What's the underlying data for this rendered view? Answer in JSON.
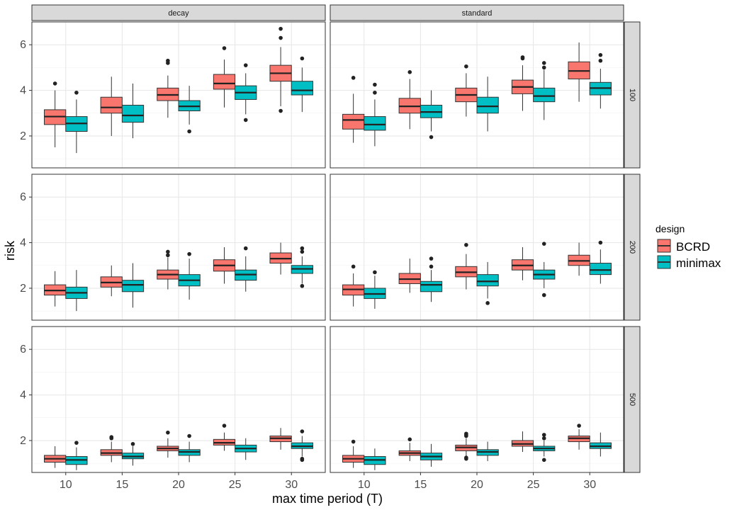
{
  "chart_data": {
    "type": "boxplot",
    "xlabel": "max time period (T)",
    "ylabel": "risk",
    "categories": [
      "10",
      "15",
      "20",
      "25",
      "30"
    ],
    "ylim": [
      0.6,
      7.0
    ],
    "y_ticks": [
      2,
      4,
      6
    ],
    "column_facets": [
      "decay",
      "standard"
    ],
    "row_facets": [
      "100",
      "200",
      "500"
    ],
    "legend": {
      "title": "design",
      "entries": [
        {
          "name": "BCRD",
          "color": "#F8766D"
        },
        {
          "name": "minimax",
          "color": "#00BFC4"
        }
      ]
    },
    "panels": [
      {
        "column": "decay",
        "row": "100",
        "series": {
          "BCRD": [
            {
              "x": "10",
              "min": 1.5,
              "q1": 2.5,
              "median": 2.85,
              "q3": 3.15,
              "max": 4.0,
              "outliers": [
                4.3
              ]
            },
            {
              "x": "15",
              "min": 2.0,
              "q1": 3.0,
              "median": 3.25,
              "q3": 3.7,
              "max": 4.6,
              "outliers": []
            },
            {
              "x": "20",
              "min": 2.8,
              "q1": 3.55,
              "median": 3.8,
              "q3": 4.1,
              "max": 4.65,
              "outliers": [
                5.2,
                5.3
              ]
            },
            {
              "x": "25",
              "min": 3.25,
              "q1": 4.05,
              "median": 4.3,
              "q3": 4.7,
              "max": 5.35,
              "outliers": [
                5.85
              ]
            },
            {
              "x": "30",
              "min": 3.3,
              "q1": 4.4,
              "median": 4.75,
              "q3": 5.1,
              "max": 5.9,
              "outliers": [
                3.1,
                6.3,
                6.7
              ]
            }
          ],
          "minimax": [
            {
              "x": "10",
              "min": 1.25,
              "q1": 2.2,
              "median": 2.55,
              "q3": 2.85,
              "max": 3.6,
              "outliers": [
                3.9
              ]
            },
            {
              "x": "15",
              "min": 1.9,
              "q1": 2.6,
              "median": 2.9,
              "q3": 3.35,
              "max": 4.3,
              "outliers": []
            },
            {
              "x": "20",
              "min": 2.5,
              "q1": 3.1,
              "median": 3.3,
              "q3": 3.55,
              "max": 4.2,
              "outliers": [
                2.2
              ]
            },
            {
              "x": "25",
              "min": 2.95,
              "q1": 3.6,
              "median": 3.9,
              "q3": 4.2,
              "max": 4.75,
              "outliers": [
                2.7,
                5.1
              ]
            },
            {
              "x": "30",
              "min": 3.05,
              "q1": 3.8,
              "median": 4.0,
              "q3": 4.4,
              "max": 5.0,
              "outliers": [
                5.4
              ]
            }
          ]
        }
      },
      {
        "column": "standard",
        "row": "100",
        "series": {
          "BCRD": [
            {
              "x": "10",
              "min": 1.7,
              "q1": 2.3,
              "median": 2.7,
              "q3": 2.95,
              "max": 3.85,
              "outliers": [
                4.55
              ]
            },
            {
              "x": "15",
              "min": 2.3,
              "q1": 3.0,
              "median": 3.3,
              "q3": 3.65,
              "max": 4.5,
              "outliers": [
                4.8
              ]
            },
            {
              "x": "20",
              "min": 2.85,
              "q1": 3.5,
              "median": 3.8,
              "q3": 4.1,
              "max": 4.75,
              "outliers": [
                5.05
              ]
            },
            {
              "x": "25",
              "min": 3.1,
              "q1": 3.85,
              "median": 4.15,
              "q3": 4.45,
              "max": 5.1,
              "outliers": [
                5.4,
                5.45
              ]
            },
            {
              "x": "30",
              "min": 3.5,
              "q1": 4.5,
              "median": 4.85,
              "q3": 5.25,
              "max": 6.1,
              "outliers": []
            }
          ],
          "minimax": [
            {
              "x": "10",
              "min": 1.55,
              "q1": 2.25,
              "median": 2.5,
              "q3": 2.85,
              "max": 3.6,
              "outliers": [
                3.9,
                4.25
              ]
            },
            {
              "x": "15",
              "min": 2.2,
              "q1": 2.8,
              "median": 3.05,
              "q3": 3.35,
              "max": 4.0,
              "outliers": [
                1.95
              ]
            },
            {
              "x": "20",
              "min": 2.2,
              "q1": 3.0,
              "median": 3.3,
              "q3": 3.7,
              "max": 4.6,
              "outliers": []
            },
            {
              "x": "25",
              "min": 2.7,
              "q1": 3.5,
              "median": 3.75,
              "q3": 4.1,
              "max": 4.9,
              "outliers": [
                5.0,
                5.2
              ]
            },
            {
              "x": "30",
              "min": 3.2,
              "q1": 3.8,
              "median": 4.1,
              "q3": 4.35,
              "max": 4.95,
              "outliers": [
                5.3,
                5.55
              ]
            }
          ]
        }
      },
      {
        "column": "decay",
        "row": "200",
        "series": {
          "BCRD": [
            {
              "x": "10",
              "min": 1.2,
              "q1": 1.7,
              "median": 1.9,
              "q3": 2.15,
              "max": 2.75,
              "outliers": []
            },
            {
              "x": "15",
              "min": 1.65,
              "q1": 2.05,
              "median": 2.25,
              "q3": 2.5,
              "max": 3.0,
              "outliers": []
            },
            {
              "x": "20",
              "min": 1.95,
              "q1": 2.4,
              "median": 2.6,
              "q3": 2.8,
              "max": 3.35,
              "outliers": [
                3.45,
                3.6
              ]
            },
            {
              "x": "25",
              "min": 2.2,
              "q1": 2.75,
              "median": 3.0,
              "q3": 3.25,
              "max": 3.8,
              "outliers": []
            },
            {
              "x": "30",
              "min": 2.6,
              "q1": 3.1,
              "median": 3.3,
              "q3": 3.55,
              "max": 4.0,
              "outliers": []
            }
          ],
          "minimax": [
            {
              "x": "10",
              "min": 1.0,
              "q1": 1.55,
              "median": 1.8,
              "q3": 2.05,
              "max": 2.8,
              "outliers": []
            },
            {
              "x": "15",
              "min": 1.15,
              "q1": 1.85,
              "median": 2.15,
              "q3": 2.35,
              "max": 3.1,
              "outliers": []
            },
            {
              "x": "20",
              "min": 1.5,
              "q1": 2.1,
              "median": 2.35,
              "q3": 2.6,
              "max": 3.3,
              "outliers": [
                3.5
              ]
            },
            {
              "x": "25",
              "min": 1.85,
              "q1": 2.35,
              "median": 2.6,
              "q3": 2.8,
              "max": 3.4,
              "outliers": [
                3.75
              ]
            },
            {
              "x": "30",
              "min": 2.2,
              "q1": 2.65,
              "median": 2.85,
              "q3": 3.0,
              "max": 3.4,
              "outliers": [
                2.1,
                3.6,
                3.75
              ]
            }
          ]
        }
      },
      {
        "column": "standard",
        "row": "200",
        "series": {
          "BCRD": [
            {
              "x": "10",
              "min": 1.2,
              "q1": 1.7,
              "median": 1.95,
              "q3": 2.15,
              "max": 2.65,
              "outliers": [
                2.95
              ]
            },
            {
              "x": "15",
              "min": 1.8,
              "q1": 2.2,
              "median": 2.4,
              "q3": 2.65,
              "max": 3.3,
              "outliers": []
            },
            {
              "x": "20",
              "min": 1.95,
              "q1": 2.5,
              "median": 2.7,
              "q3": 2.95,
              "max": 3.5,
              "outliers": [
                3.9
              ]
            },
            {
              "x": "25",
              "min": 2.35,
              "q1": 2.8,
              "median": 3.0,
              "q3": 3.25,
              "max": 3.8,
              "outliers": []
            },
            {
              "x": "30",
              "min": 2.55,
              "q1": 3.0,
              "median": 3.2,
              "q3": 3.45,
              "max": 4.0,
              "outliers": []
            }
          ],
          "minimax": [
            {
              "x": "10",
              "min": 1.1,
              "q1": 1.55,
              "median": 1.75,
              "q3": 2.0,
              "max": 2.55,
              "outliers": [
                2.7
              ]
            },
            {
              "x": "15",
              "min": 1.4,
              "q1": 1.85,
              "median": 2.15,
              "q3": 2.3,
              "max": 2.8,
              "outliers": [
                2.95,
                3.3
              ]
            },
            {
              "x": "20",
              "min": 1.55,
              "q1": 2.1,
              "median": 2.3,
              "q3": 2.6,
              "max": 3.15,
              "outliers": [
                1.35
              ]
            },
            {
              "x": "25",
              "min": 2.0,
              "q1": 2.4,
              "median": 2.6,
              "q3": 2.8,
              "max": 3.15,
              "outliers": [
                1.7,
                3.95
              ]
            },
            {
              "x": "30",
              "min": 2.2,
              "q1": 2.6,
              "median": 2.8,
              "q3": 3.1,
              "max": 3.7,
              "outliers": [
                4.0
              ]
            }
          ]
        }
      },
      {
        "column": "decay",
        "row": "500",
        "series": {
          "BCRD": [
            {
              "x": "10",
              "min": 0.8,
              "q1": 1.05,
              "median": 1.2,
              "q3": 1.35,
              "max": 1.75,
              "outliers": []
            },
            {
              "x": "15",
              "min": 1.05,
              "q1": 1.35,
              "median": 1.45,
              "q3": 1.6,
              "max": 1.95,
              "outliers": [
                2.1,
                2.15
              ]
            },
            {
              "x": "20",
              "min": 1.25,
              "q1": 1.55,
              "median": 1.65,
              "q3": 1.75,
              "max": 2.1,
              "outliers": [
                2.35
              ]
            },
            {
              "x": "25",
              "min": 1.55,
              "q1": 1.8,
              "median": 1.9,
              "q3": 2.05,
              "max": 2.35,
              "outliers": [
                2.65
              ]
            },
            {
              "x": "30",
              "min": 1.6,
              "q1": 1.95,
              "median": 2.1,
              "q3": 2.2,
              "max": 2.55,
              "outliers": []
            }
          ],
          "minimax": [
            {
              "x": "10",
              "min": 0.7,
              "q1": 0.95,
              "median": 1.15,
              "q3": 1.3,
              "max": 1.7,
              "outliers": [
                1.9
              ]
            },
            {
              "x": "15",
              "min": 0.9,
              "q1": 1.2,
              "median": 1.3,
              "q3": 1.45,
              "max": 1.75,
              "outliers": [
                1.85
              ]
            },
            {
              "x": "20",
              "min": 1.05,
              "q1": 1.35,
              "median": 1.5,
              "q3": 1.6,
              "max": 1.95,
              "outliers": [
                2.2
              ]
            },
            {
              "x": "25",
              "min": 1.15,
              "q1": 1.5,
              "median": 1.65,
              "q3": 1.8,
              "max": 2.1,
              "outliers": []
            },
            {
              "x": "30",
              "min": 1.3,
              "q1": 1.65,
              "median": 1.75,
              "q3": 1.9,
              "max": 2.2,
              "outliers": [
                1.15,
                1.2,
                2.4
              ]
            }
          ]
        }
      },
      {
        "column": "standard",
        "row": "500",
        "series": {
          "BCRD": [
            {
              "x": "10",
              "min": 0.8,
              "q1": 1.05,
              "median": 1.2,
              "q3": 1.35,
              "max": 1.75,
              "outliers": [
                1.95
              ]
            },
            {
              "x": "15",
              "min": 1.1,
              "q1": 1.35,
              "median": 1.45,
              "q3": 1.55,
              "max": 1.9,
              "outliers": [
                2.05
              ]
            },
            {
              "x": "20",
              "min": 1.3,
              "q1": 1.55,
              "median": 1.7,
              "q3": 1.8,
              "max": 2.1,
              "outliers": [
                1.2,
                1.25,
                2.2,
                2.25,
                2.3
              ]
            },
            {
              "x": "25",
              "min": 1.5,
              "q1": 1.75,
              "median": 1.85,
              "q3": 2.0,
              "max": 2.4,
              "outliers": []
            },
            {
              "x": "30",
              "min": 1.6,
              "q1": 1.95,
              "median": 2.1,
              "q3": 2.2,
              "max": 2.5,
              "outliers": [
                2.65
              ]
            }
          ],
          "minimax": [
            {
              "x": "10",
              "min": 0.7,
              "q1": 0.95,
              "median": 1.15,
              "q3": 1.3,
              "max": 1.65,
              "outliers": []
            },
            {
              "x": "15",
              "min": 0.85,
              "q1": 1.15,
              "median": 1.3,
              "q3": 1.45,
              "max": 1.85,
              "outliers": []
            },
            {
              "x": "20",
              "min": 1.1,
              "q1": 1.35,
              "median": 1.5,
              "q3": 1.6,
              "max": 1.95,
              "outliers": []
            },
            {
              "x": "25",
              "min": 1.3,
              "q1": 1.55,
              "median": 1.65,
              "q3": 1.75,
              "max": 2.0,
              "outliers": [
                1.15,
                2.1,
                2.25
              ]
            },
            {
              "x": "30",
              "min": 1.3,
              "q1": 1.65,
              "median": 1.75,
              "q3": 1.9,
              "max": 2.35,
              "outliers": []
            }
          ]
        }
      }
    ]
  }
}
